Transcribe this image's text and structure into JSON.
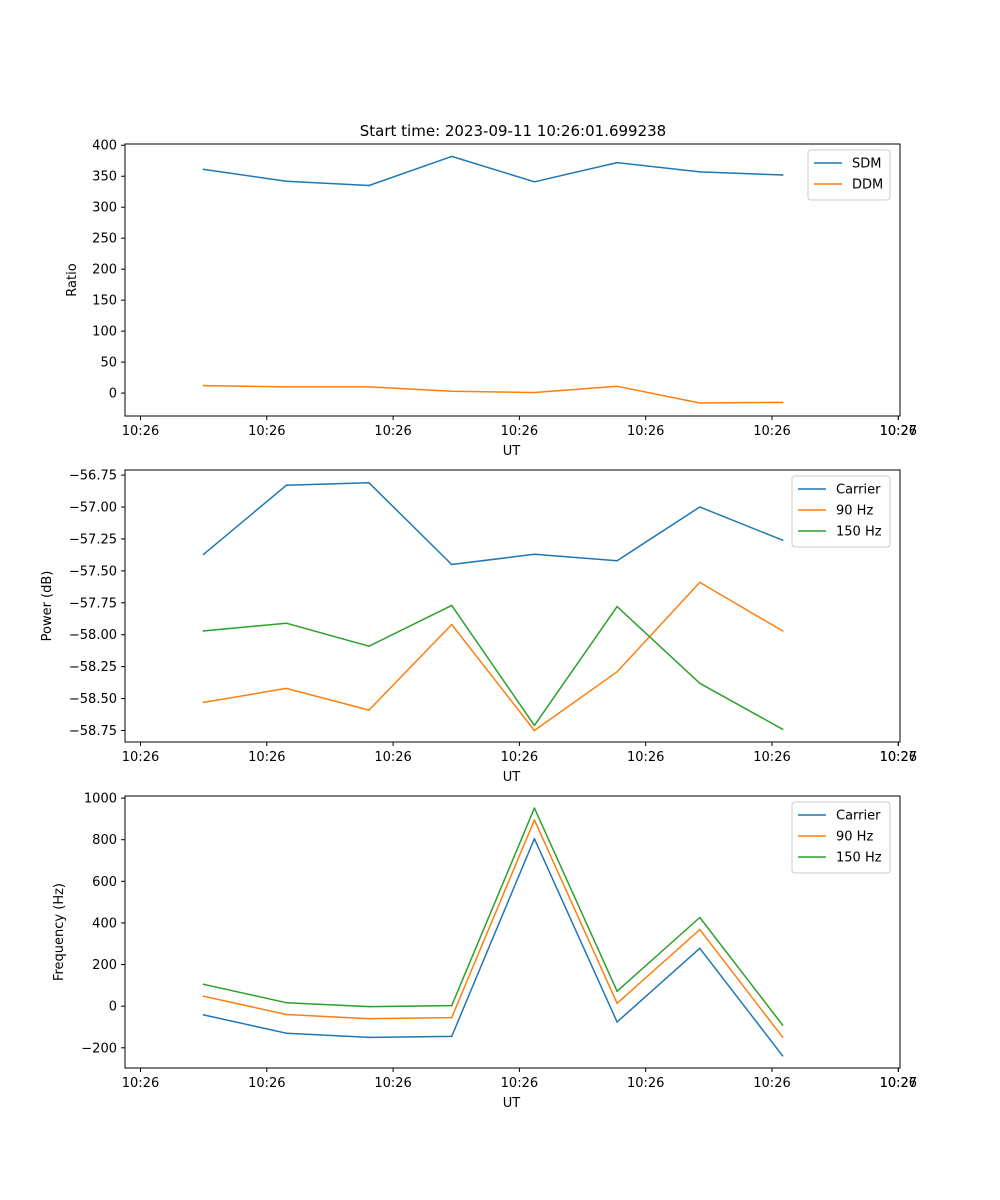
{
  "title": "Start time: 2023-09-11 10:26:01.699238",
  "colors": {
    "blue": "#1f77b4",
    "orange": "#ff7f0e",
    "green": "#2ca02c"
  },
  "chart_data": [
    {
      "type": "line",
      "xlabel": "UT",
      "ylabel": "Ratio",
      "x_tick_labels": [
        "10:26",
        "10:26",
        "10:26",
        "10:26",
        "10:26",
        "10:26",
        "10:26",
        "10:27"
      ],
      "y_ticks": [
        0,
        50,
        100,
        150,
        200,
        250,
        300,
        350,
        400
      ],
      "y_tick_labels": [
        "0",
        "50",
        "100",
        "150",
        "200",
        "250",
        "300",
        "350",
        "400"
      ],
      "ylim": [
        -37,
        402
      ],
      "legend_position": "top-right",
      "series": [
        {
          "name": "SDM",
          "color": "#1f77b4",
          "values": [
            361,
            342,
            335,
            382,
            341,
            372,
            357,
            352
          ]
        },
        {
          "name": "DDM",
          "color": "#ff7f0e",
          "values": [
            12,
            10,
            10,
            3,
            1,
            11,
            -16,
            -15
          ]
        }
      ]
    },
    {
      "type": "line",
      "xlabel": "UT",
      "ylabel": "Power (dB)",
      "x_tick_labels": [
        "10:26",
        "10:26",
        "10:26",
        "10:26",
        "10:26",
        "10:26",
        "10:26",
        "10:27"
      ],
      "y_ticks": [
        -58.75,
        -58.5,
        -58.25,
        -58.0,
        -57.75,
        -57.5,
        -57.25,
        -57.0,
        -56.75
      ],
      "y_tick_labels": [
        "−58.75",
        "−58.50",
        "−58.25",
        "−58.00",
        "−57.75",
        "−57.50",
        "−57.25",
        "−57.00",
        "−56.75"
      ],
      "ylim": [
        -58.84,
        -56.71
      ],
      "legend_position": "top-right",
      "series": [
        {
          "name": "Carrier",
          "color": "#1f77b4",
          "values": [
            -57.37,
            -56.83,
            -56.81,
            -57.45,
            -57.37,
            -57.42,
            -57.0,
            -57.26
          ]
        },
        {
          "name": "90 Hz",
          "color": "#ff7f0e",
          "values": [
            -58.53,
            -58.42,
            -58.59,
            -57.92,
            -58.75,
            -58.29,
            -57.59,
            -57.97
          ]
        },
        {
          "name": "150 Hz",
          "color": "#2ca02c",
          "values": [
            -57.97,
            -57.91,
            -58.09,
            -57.77,
            -58.71,
            -57.78,
            -58.38,
            -58.74
          ]
        }
      ]
    },
    {
      "type": "line",
      "xlabel": "UT",
      "ylabel": "Frequency (Hz)",
      "x_tick_labels": [
        "10:26",
        "10:26",
        "10:26",
        "10:26",
        "10:26",
        "10:26",
        "10:26",
        "10:27"
      ],
      "y_ticks": [
        -200,
        0,
        200,
        400,
        600,
        800,
        1000
      ],
      "y_tick_labels": [
        "−200",
        "0",
        "200",
        "400",
        "600",
        "800",
        "1000"
      ],
      "ylim": [
        -297,
        1010
      ],
      "legend_position": "top-right",
      "series": [
        {
          "name": "Carrier",
          "color": "#1f77b4",
          "values": [
            -42,
            -130,
            -150,
            -145,
            805,
            -76,
            278,
            -238
          ]
        },
        {
          "name": "90 Hz",
          "color": "#ff7f0e",
          "values": [
            48,
            -40,
            -60,
            -55,
            895,
            14,
            368,
            -148
          ]
        },
        {
          "name": "150 Hz",
          "color": "#2ca02c",
          "values": [
            105,
            17,
            -2,
            3,
            952,
            72,
            426,
            -90
          ]
        }
      ]
    }
  ]
}
